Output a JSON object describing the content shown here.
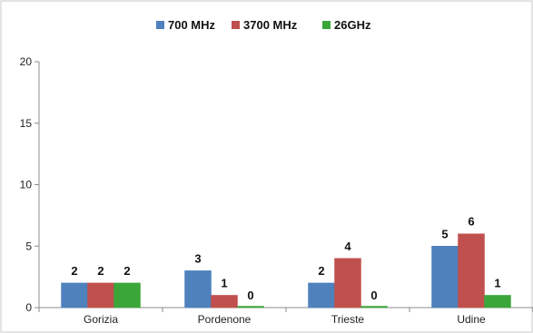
{
  "chart_data": {
    "type": "bar",
    "categories": [
      "Gorizia",
      "Pordenone",
      "Trieste",
      "Udine"
    ],
    "series": [
      {
        "name": "700 MHz",
        "color": "#4f81bd",
        "values": [
          2,
          3,
          2,
          5
        ]
      },
      {
        "name": "3700 MHz",
        "color": "#c0504d",
        "values": [
          2,
          1,
          4,
          6
        ]
      },
      {
        "name": "26GHz",
        "color": "#3aa63a",
        "values": [
          2,
          0,
          0,
          1
        ]
      }
    ],
    "ylim": [
      0,
      20
    ],
    "yticks": [
      0,
      5,
      10,
      15,
      20
    ],
    "grid": false,
    "legend_position": "top"
  }
}
